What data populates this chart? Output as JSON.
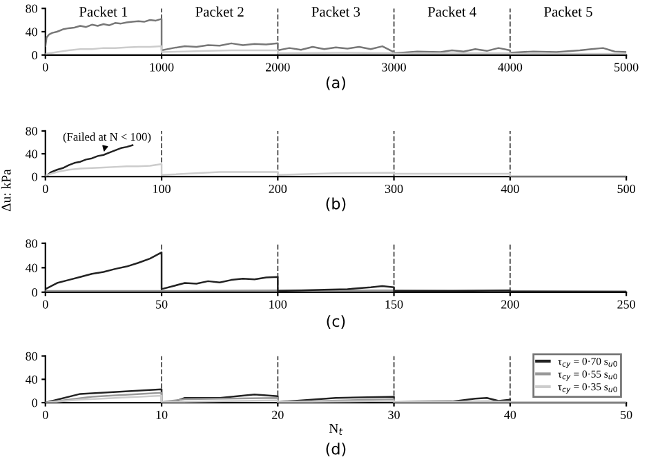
{
  "chart_data": [
    {
      "type": "line",
      "xlim": [
        0,
        5000
      ],
      "xticks": [
        0,
        1000,
        2000,
        3000,
        4000,
        5000
      ],
      "ylim": [
        0,
        80
      ],
      "yticks": [
        0,
        40,
        80
      ],
      "grid": false,
      "legend": false,
      "series": [
        {
          "color": "#777777",
          "x": [
            0,
            10,
            30,
            60,
            100,
            150,
            200,
            250,
            300,
            350,
            400,
            450,
            500,
            550,
            600,
            650,
            700,
            750,
            800,
            850,
            900,
            950,
            1000,
            1000,
            1100,
            1200,
            1300,
            1400,
            1500,
            1600,
            1700,
            1800,
            1900,
            2000,
            2000,
            2100,
            2200,
            2300,
            2400,
            2500,
            2600,
            2700,
            2800,
            2900,
            3000,
            3000,
            3200,
            3400,
            3500,
            3600,
            3700,
            3800,
            3900,
            4000,
            4000,
            4200,
            4400,
            4600,
            4700,
            4800,
            4900,
            5000
          ],
          "values": [
            15,
            30,
            35,
            38,
            40,
            44,
            46,
            47,
            50,
            48,
            52,
            50,
            53,
            51,
            55,
            54,
            56,
            57,
            58,
            57,
            60,
            59,
            62,
            8,
            12,
            15,
            14,
            17,
            16,
            20,
            17,
            19,
            18,
            20,
            8,
            12,
            9,
            14,
            10,
            13,
            11,
            14,
            10,
            15,
            5,
            3,
            6,
            5,
            8,
            6,
            10,
            7,
            12,
            8,
            4,
            6,
            5,
            8,
            10,
            12,
            6,
            5
          ]
        },
        {
          "color": "#cccccc",
          "x": [
            0,
            100,
            200,
            300,
            400,
            500,
            600,
            700,
            800,
            900,
            1000,
            1000,
            1200,
            1400,
            1600,
            1800,
            2000,
            2000,
            2500,
            3000,
            3000,
            3500,
            4000,
            4000,
            4500,
            5000
          ],
          "values": [
            2,
            5,
            8,
            10,
            10,
            12,
            12,
            13,
            14,
            14,
            15,
            5,
            6,
            7,
            8,
            8,
            8,
            3,
            4,
            3,
            2,
            3,
            3,
            2,
            2,
            2
          ]
        }
      ],
      "ref_lines": [
        {
          "axis": "x",
          "value": 1000,
          "line_style": "dashed",
          "color": "#555555"
        },
        {
          "axis": "x",
          "value": 2000,
          "line_style": "dashed",
          "color": "#555555"
        },
        {
          "axis": "x",
          "value": 3000,
          "line_style": "dashed",
          "color": "#555555"
        },
        {
          "axis": "x",
          "value": 4000,
          "line_style": "dashed",
          "color": "#555555"
        }
      ],
      "annotations": [
        "Packet 1",
        "Packet 2",
        "Packet 3",
        "Packet 4",
        "Packet 5",
        "(a)"
      ]
    },
    {
      "type": "line",
      "xlim": [
        0,
        500
      ],
      "xticks": [
        0,
        100,
        200,
        300,
        400,
        500
      ],
      "ylim": [
        0,
        80
      ],
      "yticks": [
        0,
        40,
        80
      ],
      "grid": false,
      "legend": false,
      "ylabel": "Δu: kPa",
      "series": [
        {
          "color": "#222222",
          "x": [
            0,
            5,
            10,
            15,
            20,
            25,
            30,
            35,
            40,
            45,
            50,
            55,
            60,
            65,
            70,
            75
          ],
          "values": [
            0,
            8,
            12,
            15,
            20,
            24,
            26,
            30,
            32,
            36,
            38,
            42,
            46,
            50,
            52,
            55
          ]
        },
        {
          "color": "#cccccc",
          "x": [
            0,
            10,
            20,
            30,
            40,
            50,
            60,
            70,
            80,
            90,
            100,
            100,
            150,
            200,
            200,
            250,
            300,
            300,
            400,
            400,
            500
          ],
          "values": [
            2,
            8,
            12,
            14,
            15,
            16,
            17,
            18,
            18,
            19,
            22,
            3,
            8,
            8,
            3,
            6,
            7,
            5,
            5,
            1,
            1
          ]
        }
      ],
      "ref_lines": [
        {
          "axis": "x",
          "value": 100,
          "line_style": "dashed",
          "color": "#555555"
        },
        {
          "axis": "x",
          "value": 200,
          "line_style": "dashed",
          "color": "#555555"
        },
        {
          "axis": "x",
          "value": 300,
          "line_style": "dashed",
          "color": "#555555"
        },
        {
          "axis": "x",
          "value": 400,
          "line_style": "dashed",
          "color": "#555555"
        }
      ],
      "annotations": [
        {
          "text": "(Failed at N < 100)",
          "x": 50,
          "y": 40
        },
        "(b)"
      ]
    },
    {
      "type": "line",
      "xlim": [
        0,
        250
      ],
      "xticks": [
        0,
        50,
        100,
        150,
        200,
        250
      ],
      "ylim": [
        0,
        80
      ],
      "yticks": [
        0,
        40,
        80
      ],
      "grid": false,
      "legend": false,
      "series": [
        {
          "color": "#999999",
          "x": [
            0,
            50,
            100,
            150,
            200,
            250
          ],
          "values": [
            2,
            2,
            3,
            3,
            2,
            1
          ]
        },
        {
          "color": "#222222",
          "x": [
            0,
            5,
            10,
            15,
            20,
            25,
            30,
            35,
            40,
            45,
            50,
            50,
            55,
            60,
            65,
            70,
            75,
            80,
            85,
            90,
            95,
            100,
            100,
            110,
            120,
            130,
            140,
            145,
            150,
            150,
            175,
            200,
            200,
            250
          ],
          "values": [
            5,
            15,
            20,
            25,
            30,
            33,
            38,
            42,
            48,
            55,
            65,
            5,
            10,
            15,
            14,
            18,
            16,
            20,
            22,
            21,
            24,
            25,
            2,
            3,
            4,
            5,
            8,
            10,
            8,
            2,
            2,
            3,
            1,
            1
          ]
        }
      ],
      "ref_lines": [
        {
          "axis": "x",
          "value": 50,
          "line_style": "dashed",
          "color": "#555555"
        },
        {
          "axis": "x",
          "value": 100,
          "line_style": "dashed",
          "color": "#555555"
        },
        {
          "axis": "x",
          "value": 150,
          "line_style": "dashed",
          "color": "#555555"
        },
        {
          "axis": "x",
          "value": 200,
          "line_style": "dashed",
          "color": "#555555"
        }
      ],
      "annotations": [
        "(c)"
      ]
    },
    {
      "type": "line",
      "xlim": [
        0,
        50
      ],
      "xticks": [
        0,
        10,
        20,
        30,
        40,
        50
      ],
      "ylim": [
        0,
        80
      ],
      "yticks": [
        0,
        40,
        80
      ],
      "grid": false,
      "legend": "top right",
      "xlabel": "N$_{t}$",
      "series": [
        {
          "name": "τ$_{cy}$ = 0·70 s$_{u0}$",
          "color": "#222222",
          "x": [
            0,
            3,
            10,
            10,
            11,
            12,
            15,
            18,
            20,
            20,
            25,
            30,
            30,
            35,
            37,
            38,
            39,
            40,
            40,
            50
          ],
          "values": [
            0,
            15,
            23,
            1,
            1,
            8,
            8,
            14,
            11,
            1,
            8,
            10,
            1,
            2,
            7,
            8,
            3,
            5,
            1,
            1
          ]
        },
        {
          "name": "τ$_{cy}$ = 0·55 s$_{u0}$",
          "color": "#999999",
          "x": [
            0,
            4,
            10,
            10,
            12,
            20,
            20,
            30,
            30,
            40,
            40,
            50
          ],
          "values": [
            0,
            10,
            17,
            1,
            6,
            8,
            1,
            6,
            1,
            2,
            1,
            1
          ]
        },
        {
          "name": "τ$_{cy}$ = 0·35 s$_{u0}$",
          "color": "#cccccc",
          "x": [
            0,
            3,
            10,
            10,
            20,
            20,
            30,
            30,
            40,
            40,
            50
          ],
          "values": [
            0,
            5,
            12,
            1,
            4,
            1,
            3,
            1,
            1,
            1,
            1
          ]
        }
      ],
      "ref_lines": [
        {
          "axis": "x",
          "value": 10,
          "line_style": "dashed",
          "color": "#555555"
        },
        {
          "axis": "x",
          "value": 20,
          "line_style": "dashed",
          "color": "#555555"
        },
        {
          "axis": "x",
          "value": 30,
          "line_style": "dashed",
          "color": "#555555"
        },
        {
          "axis": "x",
          "value": 40,
          "line_style": "dashed",
          "color": "#555555"
        }
      ],
      "annotations": [
        "(d)"
      ]
    }
  ]
}
